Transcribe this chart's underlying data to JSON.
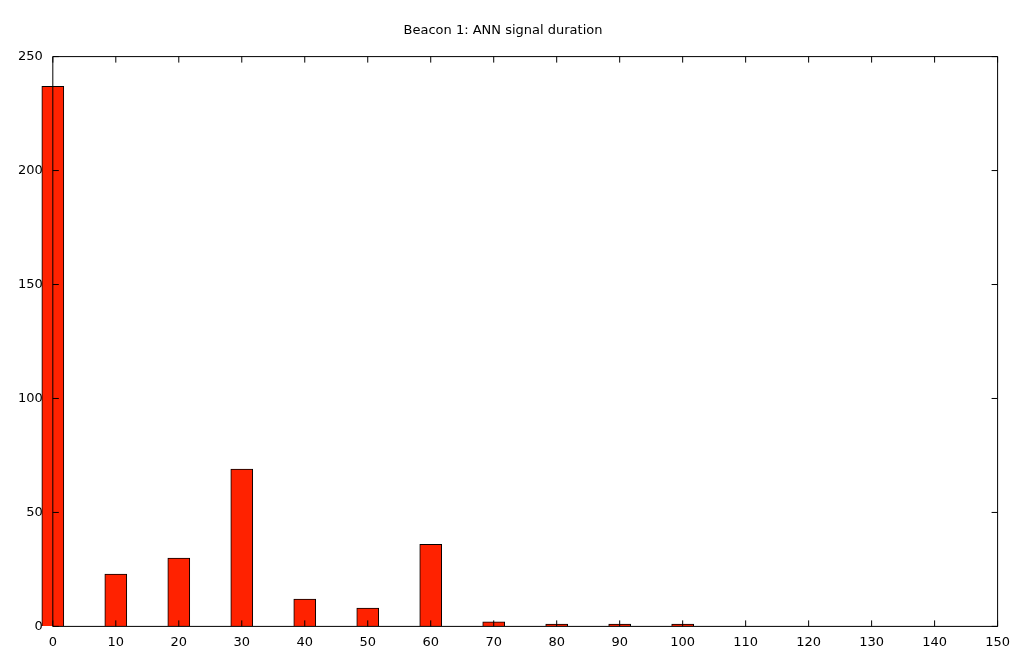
{
  "chart_data": {
    "type": "bar",
    "title": "Beacon 1: ANN signal duration",
    "x": [
      0,
      10,
      20,
      30,
      40,
      50,
      60,
      70,
      80,
      90,
      100
    ],
    "values": [
      237,
      23,
      30,
      69,
      12,
      8,
      36,
      2,
      1,
      1,
      1
    ],
    "color": "#ff2200",
    "xlim": [
      0,
      150
    ],
    "xticks": [
      0,
      10,
      20,
      30,
      40,
      50,
      60,
      70,
      80,
      90,
      100,
      110,
      120,
      130,
      140,
      150
    ],
    "ylim": [
      0,
      250
    ],
    "yticks": [
      0,
      50,
      100,
      150,
      200,
      250
    ],
    "grid": false,
    "legend": false
  }
}
